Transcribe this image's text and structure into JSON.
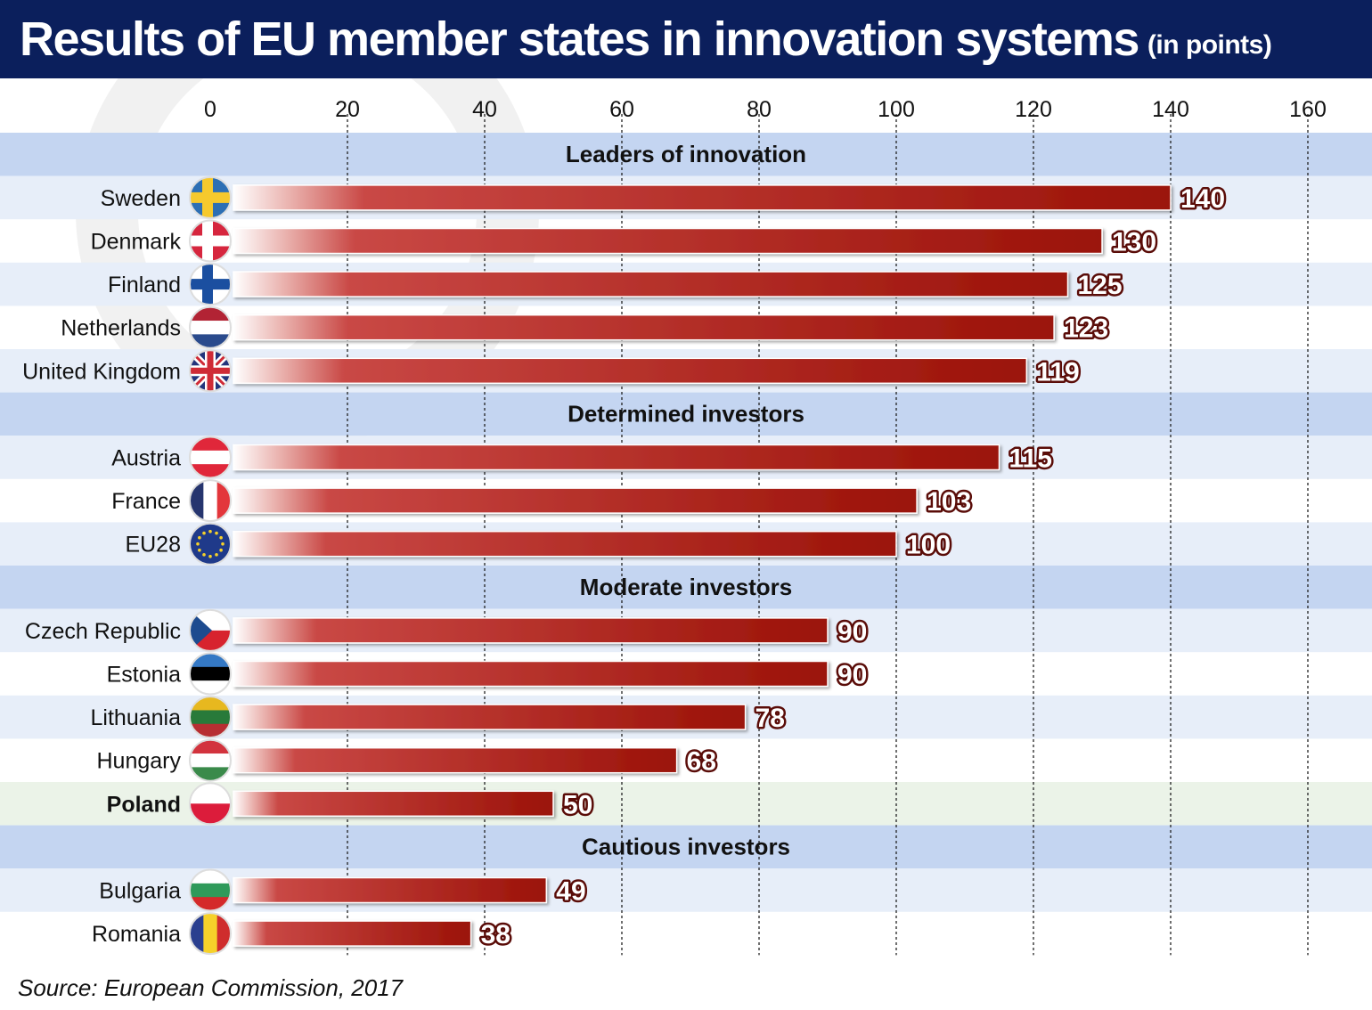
{
  "title": "Results of EU member states in innovation systems",
  "subtitle": "(in points)",
  "source": "Source: European Commission, 2017",
  "colors": {
    "header_bg": "#0b1f5c",
    "group_band": "#c4d5f1",
    "row_band": "#e7eef9",
    "highlight_band": "#ebf3e8",
    "bar_dark": "#9b1208",
    "bar_light": "#ffffff"
  },
  "chart_data": {
    "type": "bar",
    "orientation": "horizontal",
    "xlim": [
      0,
      160
    ],
    "xticks": [
      "0",
      "20",
      "40",
      "60",
      "80",
      "100",
      "120",
      "140",
      "160"
    ],
    "grid": true,
    "highlight": "Poland",
    "groups": [
      {
        "name": "Leaders of innovation",
        "items": [
          {
            "country": "Sweden",
            "value": 140,
            "flag": "sweden-flag-icon"
          },
          {
            "country": "Denmark",
            "value": 130,
            "flag": "denmark-flag-icon"
          },
          {
            "country": "Finland",
            "value": 125,
            "flag": "finland-flag-icon"
          },
          {
            "country": "Netherlands",
            "value": 123,
            "flag": "netherlands-flag-icon"
          },
          {
            "country": "United Kingdom",
            "value": 119,
            "flag": "united-kingdom-flag-icon"
          }
        ]
      },
      {
        "name": "Determined investors",
        "items": [
          {
            "country": "Austria",
            "value": 115,
            "flag": "austria-flag-icon"
          },
          {
            "country": "France",
            "value": 103,
            "flag": "france-flag-icon"
          },
          {
            "country": "EU28",
            "value": 100,
            "flag": "eu-flag-icon"
          }
        ]
      },
      {
        "name": "Moderate investors",
        "items": [
          {
            "country": "Czech Republic",
            "value": 90,
            "flag": "czech-republic-flag-icon"
          },
          {
            "country": "Estonia",
            "value": 90,
            "flag": "estonia-flag-icon"
          },
          {
            "country": "Lithuania",
            "value": 78,
            "flag": "lithuania-flag-icon"
          },
          {
            "country": "Hungary",
            "value": 68,
            "flag": "hungary-flag-icon"
          },
          {
            "country": "Poland",
            "value": 50,
            "flag": "poland-flag-icon"
          }
        ]
      },
      {
        "name": "Cautious investors",
        "items": [
          {
            "country": "Bulgaria",
            "value": 49,
            "flag": "bulgaria-flag-icon"
          },
          {
            "country": "Romania",
            "value": 38,
            "flag": "romania-flag-icon"
          }
        ]
      }
    ]
  }
}
